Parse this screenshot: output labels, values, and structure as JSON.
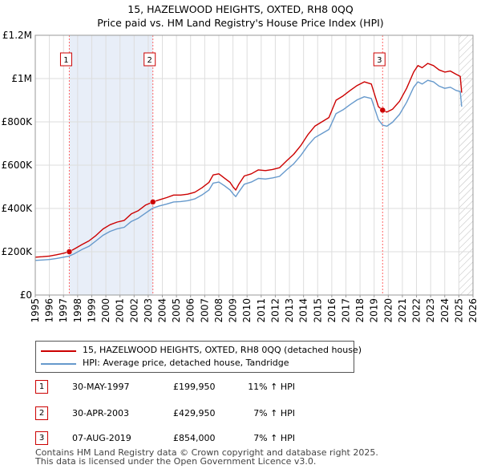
{
  "header": {
    "title_line1": "15, HAZELWOOD HEIGHTS, OXTED, RH8 0QQ",
    "title_line2": "Price paid vs. HM Land Registry's House Price Index (HPI)"
  },
  "chart_data": {
    "type": "line",
    "title": "15, HAZELWOOD HEIGHTS, OXTED, RH8 0QQ — Price paid vs. HM Land Registry's House Price Index (HPI)",
    "xlabel": "",
    "ylabel": "",
    "xlim": [
      1995,
      2026
    ],
    "ylim": [
      0,
      1200000
    ],
    "x_ticks": [
      "1995",
      "1996",
      "1997",
      "1998",
      "1999",
      "2000",
      "2001",
      "2002",
      "2003",
      "2004",
      "2005",
      "2006",
      "2007",
      "2008",
      "2009",
      "2010",
      "2011",
      "2012",
      "2013",
      "2014",
      "2015",
      "2016",
      "2017",
      "2018",
      "2019",
      "2020",
      "2021",
      "2022",
      "2023",
      "2024",
      "2025",
      "2026"
    ],
    "y_ticks": [
      {
        "value": 0,
        "label": "£0"
      },
      {
        "value": 200000,
        "label": "£200K"
      },
      {
        "value": 400000,
        "label": "£400K"
      },
      {
        "value": 600000,
        "label": "£600K"
      },
      {
        "value": 800000,
        "label": "£800K"
      },
      {
        "value": 1000000,
        "label": "£1M"
      },
      {
        "value": 1200000,
        "label": "£1.2M"
      }
    ],
    "grid": true,
    "colors": {
      "property": "#cc0000",
      "hpi": "#6699cc",
      "shade": "#e8eef8",
      "vline": "#ff6666",
      "hatch": "#bbbbbb"
    },
    "series": [
      {
        "name": "15, HAZELWOOD HEIGHTS, OXTED, RH8 0QQ (detached house)",
        "x": [
          1995.0,
          1995.5,
          1996.0,
          1996.5,
          1997.0,
          1997.41,
          1997.8,
          1998.3,
          1998.8,
          1999.3,
          1999.8,
          2000.3,
          2000.8,
          2001.3,
          2001.8,
          2002.3,
          2002.8,
          2003.33,
          2003.8,
          2004.3,
          2004.8,
          2005.3,
          2005.8,
          2006.3,
          2006.8,
          2007.3,
          2007.6,
          2008.0,
          2008.4,
          2008.8,
          2009.0,
          2009.2,
          2009.4,
          2009.8,
          2010.3,
          2010.8,
          2011.3,
          2011.8,
          2012.3,
          2012.8,
          2013.3,
          2013.8,
          2014.3,
          2014.8,
          2015.3,
          2015.8,
          2016.3,
          2016.8,
          2017.3,
          2017.8,
          2018.3,
          2018.8,
          2019.3,
          2019.6,
          2019.9,
          2020.3,
          2020.8,
          2021.3,
          2021.8,
          2022.1,
          2022.4,
          2022.8,
          2023.2,
          2023.6,
          2024.0,
          2024.4,
          2024.8,
          2025.1,
          2025.2
        ],
        "values": [
          175000,
          177000,
          180000,
          186000,
          193000,
          199950,
          214000,
          233000,
          250000,
          275000,
          305000,
          325000,
          337000,
          345000,
          375000,
          390000,
          415000,
          429950,
          440000,
          450000,
          462000,
          462000,
          466000,
          475000,
          495000,
          520000,
          555000,
          560000,
          540000,
          520000,
          500000,
          485000,
          510000,
          550000,
          560000,
          578000,
          575000,
          580000,
          588000,
          620000,
          650000,
          690000,
          740000,
          780000,
          800000,
          820000,
          900000,
          920000,
          945000,
          968000,
          985000,
          975000,
          870000,
          854000,
          845000,
          858000,
          895000,
          955000,
          1030000,
          1060000,
          1050000,
          1070000,
          1060000,
          1040000,
          1030000,
          1035000,
          1020000,
          1010000,
          935000
        ]
      },
      {
        "name": "HPI: Average price, detached house, Tandridge",
        "x": [
          1995.0,
          1995.5,
          1996.0,
          1996.5,
          1997.0,
          1997.41,
          1997.8,
          1998.3,
          1998.8,
          1999.3,
          1999.8,
          2000.3,
          2000.8,
          2001.3,
          2001.8,
          2002.3,
          2002.8,
          2003.33,
          2003.8,
          2004.3,
          2004.8,
          2005.3,
          2005.8,
          2006.3,
          2006.8,
          2007.3,
          2007.6,
          2008.0,
          2008.4,
          2008.8,
          2009.0,
          2009.2,
          2009.4,
          2009.8,
          2010.3,
          2010.8,
          2011.3,
          2011.8,
          2012.3,
          2012.8,
          2013.3,
          2013.8,
          2014.3,
          2014.8,
          2015.3,
          2015.8,
          2016.3,
          2016.8,
          2017.3,
          2017.8,
          2018.3,
          2018.8,
          2019.3,
          2019.6,
          2019.9,
          2020.3,
          2020.8,
          2021.3,
          2021.8,
          2022.1,
          2022.4,
          2022.8,
          2023.2,
          2023.6,
          2024.0,
          2024.4,
          2024.8,
          2025.1,
          2025.2
        ],
        "values": [
          160000,
          162000,
          164000,
          169000,
          175000,
          180000,
          192000,
          210000,
          225000,
          250000,
          276000,
          294000,
          306000,
          313000,
          340000,
          355000,
          378000,
          402000,
          412000,
          420000,
          430000,
          432000,
          436000,
          444000,
          462000,
          485000,
          517000,
          522000,
          505000,
          485000,
          468000,
          455000,
          475000,
          512000,
          522000,
          539000,
          536000,
          541000,
          548000,
          578000,
          606000,
          644000,
          690000,
          727000,
          746000,
          765000,
          838000,
          856000,
          880000,
          902000,
          916000,
          908000,
          810000,
          785000,
          780000,
          798000,
          835000,
          890000,
          960000,
          985000,
          975000,
          992000,
          985000,
          965000,
          955000,
          960000,
          945000,
          940000,
          870000
        ]
      }
    ],
    "sales": [
      {
        "num": "1",
        "x": 1997.41,
        "value": 199950
      },
      {
        "num": "2",
        "x": 2003.33,
        "value": 429950
      },
      {
        "num": "3",
        "x": 2019.6,
        "value": 854000
      }
    ],
    "shaded_periods": [
      [
        1997.41,
        2003.33
      ]
    ],
    "hatched_from": 2025.0
  },
  "legend": {
    "property": "15, HAZELWOOD HEIGHTS, OXTED, RH8 0QQ (detached house)",
    "hpi": "HPI: Average price, detached house, Tandridge"
  },
  "sales_table": [
    {
      "num": "1",
      "date": "30-MAY-1997",
      "price": "£199,950",
      "hpi": "11% ↑ HPI"
    },
    {
      "num": "2",
      "date": "30-APR-2003",
      "price": "£429,950",
      "hpi": "7% ↑ HPI"
    },
    {
      "num": "3",
      "date": "07-AUG-2019",
      "price": "£854,000",
      "hpi": "7% ↑ HPI"
    }
  ],
  "footer": {
    "line1": "Contains HM Land Registry data © Crown copyright and database right 2025.",
    "line2": "This data is licensed under the Open Government Licence v3.0."
  }
}
